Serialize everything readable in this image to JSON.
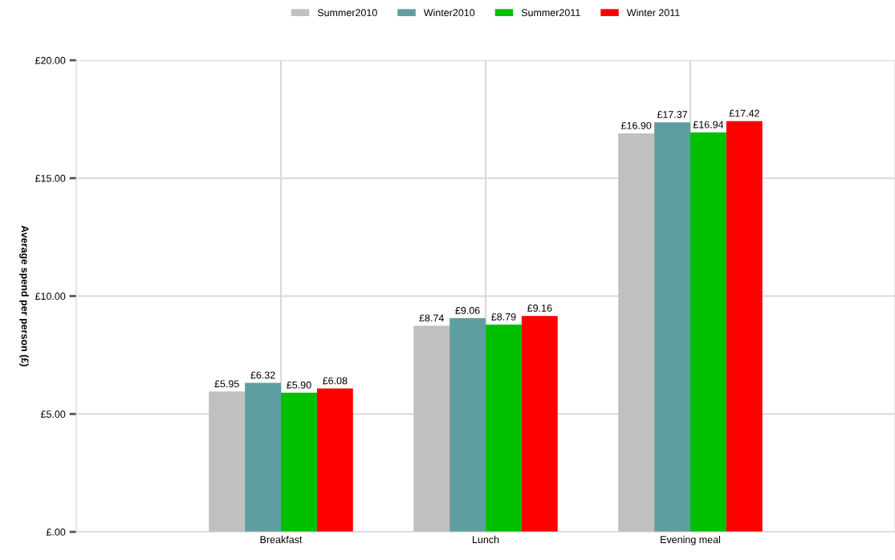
{
  "chart_data": {
    "type": "bar",
    "ylabel": "Average spend per person (£)",
    "categories": [
      "Breakfast",
      "Lunch",
      "Evening meal"
    ],
    "series": [
      {
        "name": "Summer2010",
        "color": "#c0c0c0",
        "values": [
          5.95,
          8.74,
          16.9
        ],
        "value_labels": [
          "£5.95",
          "£8.74",
          "£16.90"
        ]
      },
      {
        "name": "Winter2010",
        "color": "#5f9ea0",
        "values": [
          6.32,
          9.06,
          17.37
        ],
        "value_labels": [
          "£6.32",
          "£9.06",
          "£17.37"
        ]
      },
      {
        "name": "Summer2011",
        "color": "#00c000",
        "values": [
          5.9,
          8.79,
          16.94
        ],
        "value_labels": [
          "£5.90",
          "£8.79",
          "£16.94"
        ]
      },
      {
        "name": "Winter 2011",
        "color": "#ff0000",
        "values": [
          6.08,
          9.16,
          17.42
        ],
        "value_labels": [
          "£6.08",
          "£9.16",
          "£17.42"
        ]
      }
    ],
    "ylim": [
      0,
      20
    ],
    "yticks": [
      {
        "value": 0,
        "label": "£.00"
      },
      {
        "value": 5,
        "label": "£5.00"
      },
      {
        "value": 10,
        "label": "£10.00"
      },
      {
        "value": 15,
        "label": "£15.00"
      },
      {
        "value": 20,
        "label": "£20.00"
      }
    ],
    "grid": true,
    "legend": "top"
  }
}
